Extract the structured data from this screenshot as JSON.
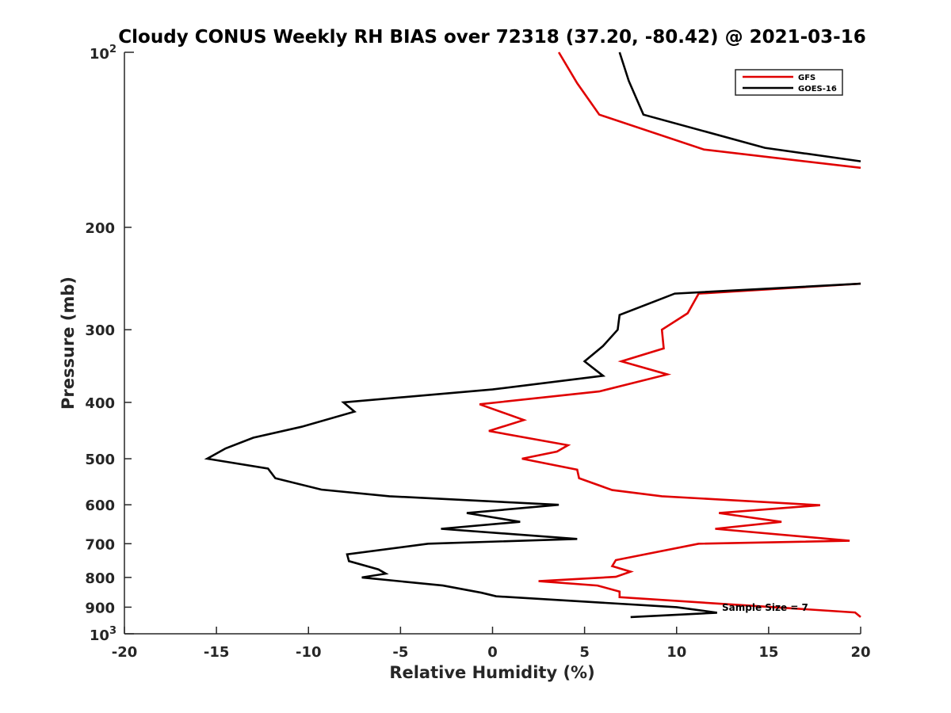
{
  "chart_data": {
    "type": "line",
    "title": "Cloudy CONUS Weekly RH BIAS over 72318 (37.20, -80.42) @ 2021-03-16",
    "xlabel": "Relative Humidity (%)",
    "ylabel": "Pressure (mb)",
    "xlim": [
      -20,
      20
    ],
    "ylim": [
      100,
      1000
    ],
    "y_scale": "log",
    "y_reversed": true,
    "legend_position": "top-right",
    "x_ticks": [
      -20,
      -15,
      -10,
      -5,
      0,
      5,
      10,
      15,
      20
    ],
    "x_tick_labels": [
      "-20",
      "-15",
      "-10",
      "-5",
      "0",
      "5",
      "10",
      "15",
      "20"
    ],
    "y_ticks": [
      200,
      300,
      400,
      500,
      600,
      700,
      800,
      900
    ],
    "y_tick_labels": [
      "200",
      "300",
      "400",
      "500",
      "600",
      "700",
      "800",
      "900"
    ],
    "y_major_labels": [
      {
        "value": 100,
        "base": "10",
        "exp": "2"
      },
      {
        "value": 1000,
        "base": "10",
        "exp": "3"
      }
    ],
    "annotation": "Sample Size = 7",
    "series": [
      {
        "name": "GFS",
        "color": "#e00000",
        "segments": [
          [
            {
              "x": 3.6,
              "p": 100
            },
            {
              "x": 4.6,
              "p": 113
            },
            {
              "x": 5.8,
              "p": 128
            },
            {
              "x": 11.5,
              "p": 147
            },
            {
              "x": 20.2,
              "p": 158
            }
          ],
          [
            {
              "x": 20.2,
              "p": 250
            },
            {
              "x": 11.2,
              "p": 260
            },
            {
              "x": 10.6,
              "p": 281
            },
            {
              "x": 9.2,
              "p": 300
            },
            {
              "x": 9.3,
              "p": 323
            },
            {
              "x": 7.0,
              "p": 340
            },
            {
              "x": 9.5,
              "p": 358
            },
            {
              "x": 5.8,
              "p": 383
            },
            {
              "x": -0.7,
              "p": 403
            },
            {
              "x": 1.7,
              "p": 429
            },
            {
              "x": -0.2,
              "p": 448
            },
            {
              "x": 4.1,
              "p": 474
            },
            {
              "x": 3.5,
              "p": 486
            },
            {
              "x": 1.6,
              "p": 500
            },
            {
              "x": 4.6,
              "p": 522
            },
            {
              "x": 4.7,
              "p": 540
            },
            {
              "x": 6.5,
              "p": 566
            },
            {
              "x": 9.2,
              "p": 580
            },
            {
              "x": 17.8,
              "p": 601
            },
            {
              "x": 12.3,
              "p": 620
            },
            {
              "x": 15.7,
              "p": 642
            },
            {
              "x": 12.1,
              "p": 660
            },
            {
              "x": 19.4,
              "p": 692
            },
            {
              "x": 11.2,
              "p": 700
            },
            {
              "x": 6.7,
              "p": 747
            },
            {
              "x": 6.5,
              "p": 765
            },
            {
              "x": 7.5,
              "p": 782
            },
            {
              "x": 6.7,
              "p": 798
            },
            {
              "x": 2.5,
              "p": 812
            },
            {
              "x": 5.7,
              "p": 826
            },
            {
              "x": 6.9,
              "p": 846
            },
            {
              "x": 6.9,
              "p": 865
            },
            {
              "x": 19.7,
              "p": 919
            },
            {
              "x": 20.3,
              "p": 936
            }
          ]
        ]
      },
      {
        "name": "GOES-16",
        "color": "#000000",
        "segments": [
          [
            {
              "x": 6.9,
              "p": 100
            },
            {
              "x": 7.4,
              "p": 112
            },
            {
              "x": 8.2,
              "p": 128
            },
            {
              "x": 14.8,
              "p": 146
            },
            {
              "x": 20.2,
              "p": 154
            }
          ],
          [
            {
              "x": 20.2,
              "p": 250
            },
            {
              "x": 9.9,
              "p": 260
            },
            {
              "x": 6.9,
              "p": 283
            },
            {
              "x": 6.8,
              "p": 300
            },
            {
              "x": 6.0,
              "p": 320
            },
            {
              "x": 5.0,
              "p": 340
            },
            {
              "x": 6.0,
              "p": 360
            },
            {
              "x": 0.0,
              "p": 380
            },
            {
              "x": -8.1,
              "p": 400
            },
            {
              "x": -7.5,
              "p": 415
            },
            {
              "x": -10.3,
              "p": 440
            },
            {
              "x": -13.0,
              "p": 460
            },
            {
              "x": -14.5,
              "p": 480
            },
            {
              "x": -15.5,
              "p": 500
            },
            {
              "x": -12.2,
              "p": 520
            },
            {
              "x": -11.8,
              "p": 540
            },
            {
              "x": -9.3,
              "p": 565
            },
            {
              "x": -5.6,
              "p": 580
            },
            {
              "x": 3.6,
              "p": 600
            },
            {
              "x": -1.4,
              "p": 620
            },
            {
              "x": 1.5,
              "p": 642
            },
            {
              "x": -2.8,
              "p": 660
            },
            {
              "x": 4.6,
              "p": 687
            },
            {
              "x": -3.5,
              "p": 700
            },
            {
              "x": -7.9,
              "p": 730
            },
            {
              "x": -7.8,
              "p": 750
            },
            {
              "x": -6.2,
              "p": 775
            },
            {
              "x": -5.8,
              "p": 788
            },
            {
              "x": -7.1,
              "p": 800
            },
            {
              "x": -2.7,
              "p": 826
            },
            {
              "x": -0.6,
              "p": 850
            },
            {
              "x": 0.2,
              "p": 862
            },
            {
              "x": 10.0,
              "p": 900
            },
            {
              "x": 12.2,
              "p": 920
            },
            {
              "x": 7.5,
              "p": 936
            }
          ]
        ]
      }
    ]
  }
}
